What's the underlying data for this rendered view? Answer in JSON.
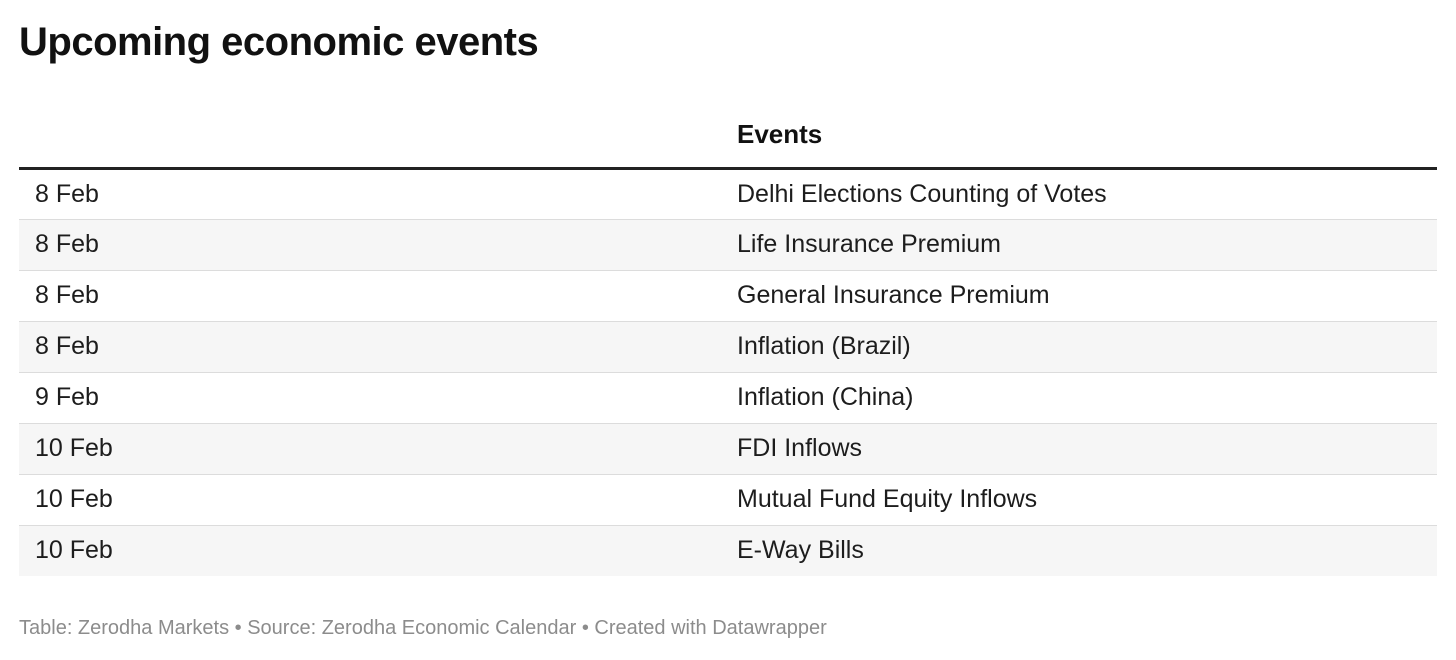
{
  "title": "Upcoming economic events",
  "chart_data": {
    "type": "table",
    "title": "Upcoming economic events",
    "columns": [
      "",
      "Events"
    ],
    "rows": [
      [
        "8 Feb",
        "Delhi Elections Counting of Votes"
      ],
      [
        "8 Feb",
        "Life Insurance Premium"
      ],
      [
        "8 Feb",
        "General Insurance Premium"
      ],
      [
        "8 Feb",
        "Inflation (Brazil)"
      ],
      [
        "9 Feb",
        "Inflation (China)"
      ],
      [
        "10 Feb",
        "FDI Inflows"
      ],
      [
        "10 Feb",
        "Mutual Fund Equity Inflows"
      ],
      [
        "10 Feb",
        "E-Way Bills"
      ]
    ]
  },
  "footer": {
    "text": "Table: Zerodha Markets • Source: Zerodha Economic Calendar • Created with Datawrapper"
  },
  "colors": {
    "header_rule": "#222222",
    "row_stripe": "#f6f6f6",
    "row_divider": "#dcdcdc",
    "footer_text": "#8c8c8c"
  }
}
